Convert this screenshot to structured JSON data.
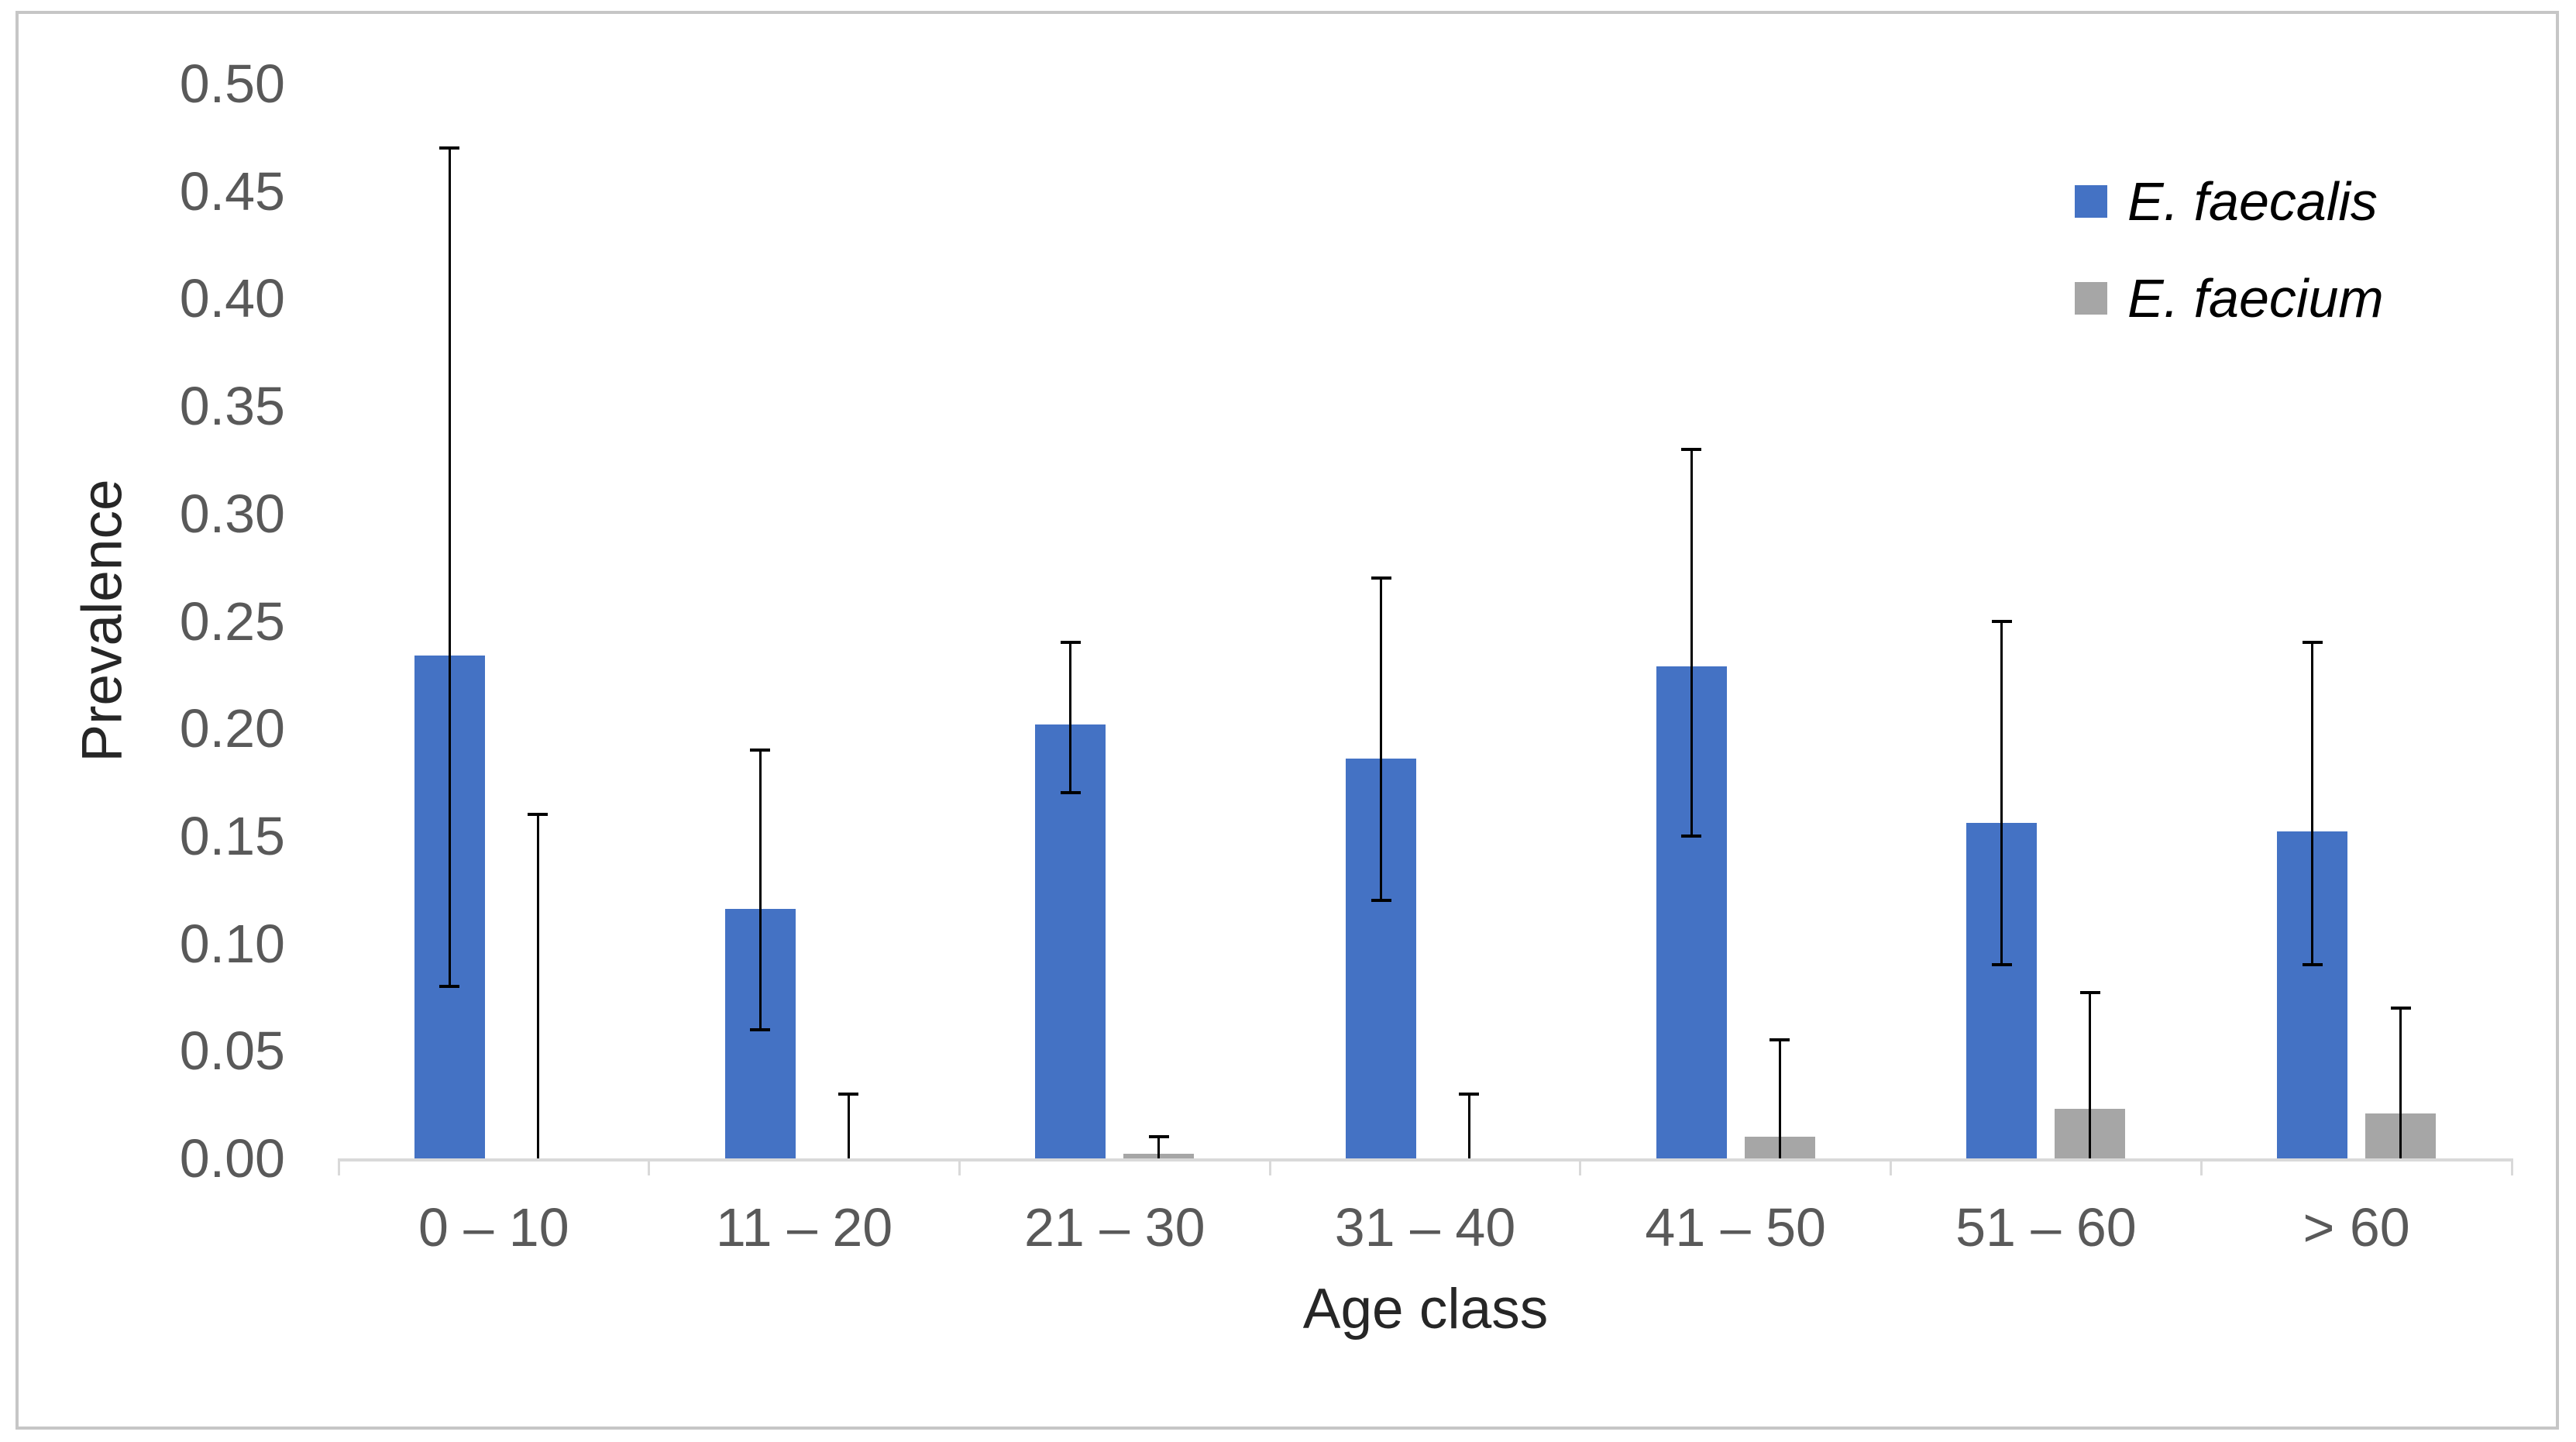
{
  "chart_data": {
    "type": "bar",
    "title": "",
    "xlabel": "Age class",
    "ylabel": "Prevalence",
    "categories": [
      "0 – 10",
      "11 – 20",
      "21 – 30",
      "31 – 40",
      "41 – 50",
      "51 – 60",
      "> 60"
    ],
    "series": [
      {
        "name": "E. faecalis",
        "color": "#4472C4",
        "values": [
          0.234,
          0.116,
          0.202,
          0.186,
          0.229,
          0.156,
          0.152
        ],
        "ci_low": [
          0.08,
          0.06,
          0.17,
          0.12,
          0.15,
          0.09,
          0.09
        ],
        "ci_high": [
          0.47,
          0.19,
          0.24,
          0.27,
          0.33,
          0.25,
          0.24
        ]
      },
      {
        "name": "E. faecium",
        "color": "#A6A6A6",
        "values": [
          0,
          0,
          0.002,
          0,
          0.01,
          0.023,
          0.021
        ],
        "ci_low": [
          0,
          0,
          0,
          0,
          0,
          0,
          0
        ],
        "ci_high": [
          0.16,
          0.03,
          0.01,
          0.03,
          0.055,
          0.077,
          0.07
        ]
      }
    ],
    "ylim": [
      0,
      0.5
    ],
    "ytick_labels": [
      "0.00",
      "0.05",
      "0.10",
      "0.15",
      "0.20",
      "0.25",
      "0.30",
      "0.35",
      "0.40",
      "0.45",
      "0.50"
    ],
    "grid": false,
    "legend_position": "top-right",
    "error_bars": true,
    "colors": {
      "error_bar": "#000000",
      "axis_line": "#D9D9D9",
      "tick_label": "#595959",
      "axis_title": "#262626",
      "frame_border": "#C6C6C6",
      "background": "#FFFFFF"
    }
  }
}
